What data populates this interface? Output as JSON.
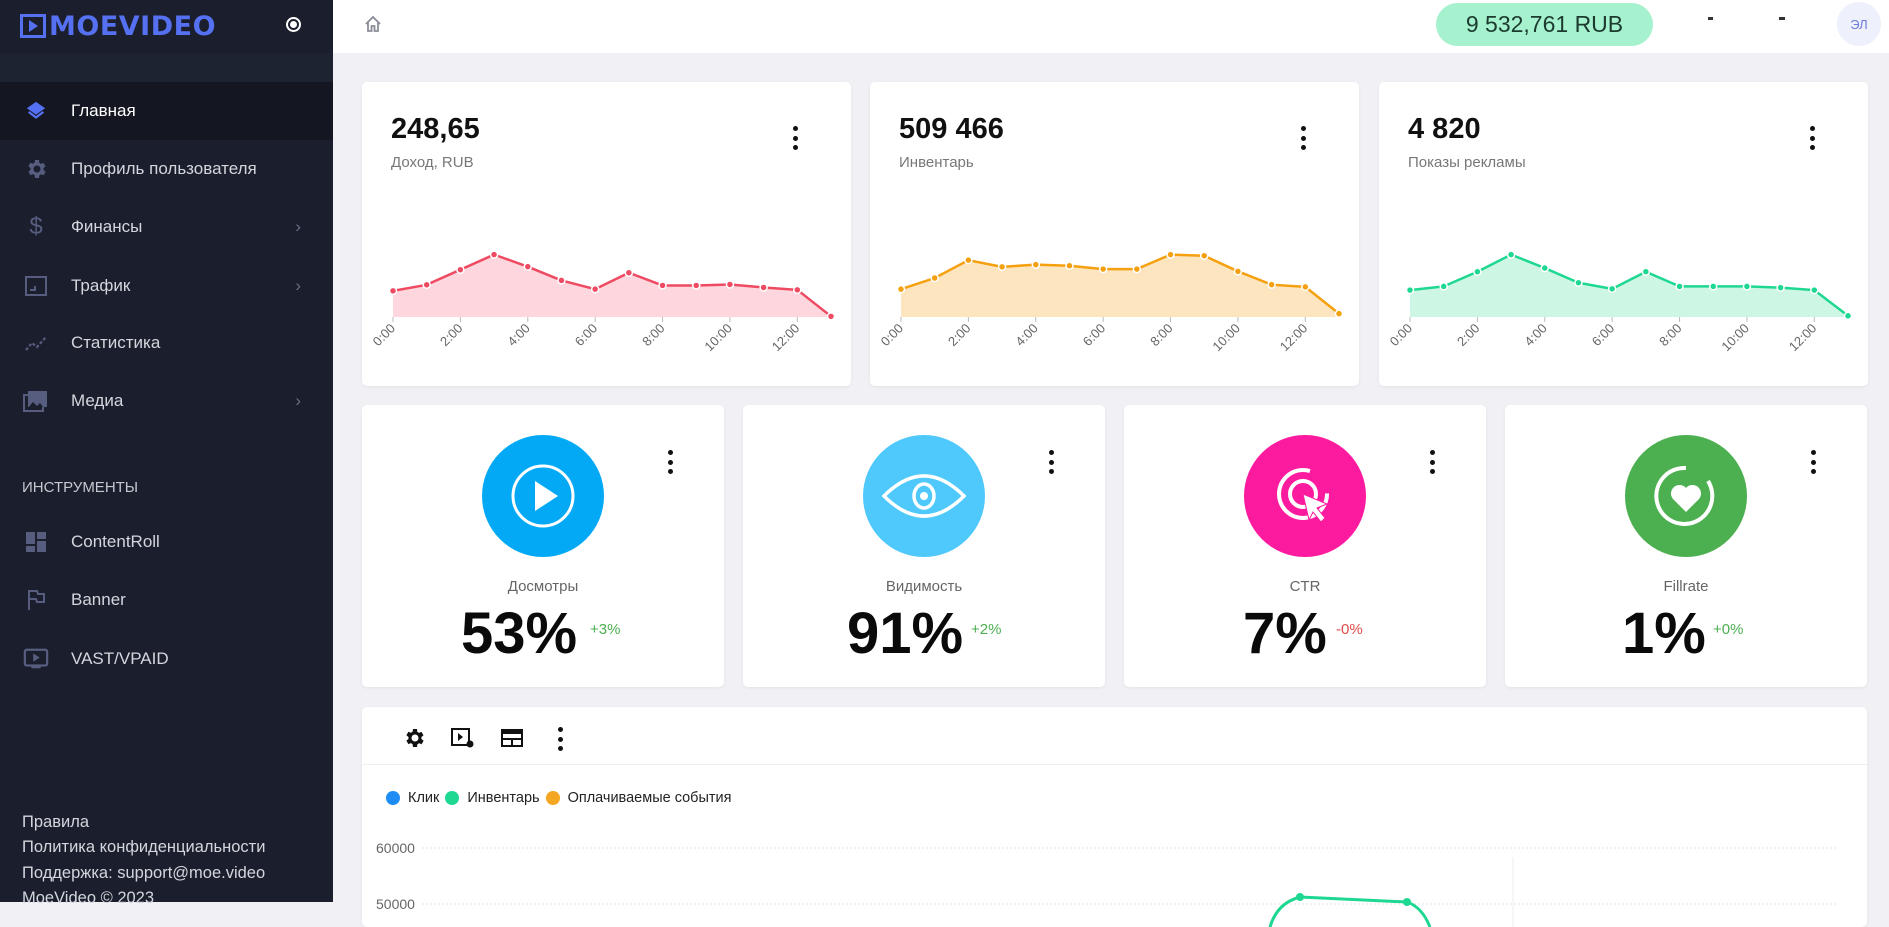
{
  "brand": {
    "name": "MOEVIDEO",
    "accent": "#5570f1"
  },
  "sidebar": {
    "items": [
      {
        "label": "Главная",
        "icon": "layers-icon",
        "active": true
      },
      {
        "label": "Профиль пользователя",
        "icon": "gear-icon"
      },
      {
        "label": "Финансы",
        "icon": "dollar-icon",
        "chevron": true
      },
      {
        "label": "Трафик",
        "icon": "traffic-icon",
        "chevron": true
      },
      {
        "label": "Статистика",
        "icon": "stats-icon"
      },
      {
        "label": "Медиа",
        "icon": "media-icon",
        "chevron": true
      }
    ],
    "section_title": "ИНСТРУМЕНТЫ",
    "tools": [
      {
        "label": "ContentRoll",
        "icon": "grid-icon"
      },
      {
        "label": "Banner",
        "icon": "flag-icon"
      },
      {
        "label": "VAST/VPAID",
        "icon": "tv-play-icon"
      }
    ],
    "footer": [
      "Правила",
      "Политика конфиденциальности",
      "Поддержка: support@moe.video",
      "MoeVideo © 2023"
    ]
  },
  "header": {
    "balance": "9 532,761 RUB",
    "avatar": "ЭЛ"
  },
  "stat_cards": [
    {
      "value": "248,65",
      "label": "Доход, RUB",
      "color": "#ee4a62",
      "fill": "#fdd0d7",
      "values": [
        78,
        96,
        141,
        186,
        150,
        109,
        83,
        132,
        94,
        94,
        97,
        88,
        81,
        2
      ]
    },
    {
      "value": "509 466",
      "label": "Инвентарь",
      "color": "#f5a00f",
      "fill": "#fde0b4",
      "values": [
        25,
        35,
        51,
        45,
        47,
        46,
        43,
        43,
        56,
        55,
        41,
        29,
        27,
        3
      ]
    },
    {
      "value": "4 820",
      "label": "Показы рекламы",
      "color": "#1ed892",
      "fill": "#c5f5e1",
      "values": [
        22,
        25,
        37,
        51,
        40,
        28,
        23,
        37,
        25,
        25,
        25,
        24,
        22,
        1
      ]
    }
  ],
  "x_ticks": [
    "0:00",
    "2:00",
    "4:00",
    "6:00",
    "8:00",
    "10:00",
    "12:00"
  ],
  "kpis": [
    {
      "label": "Досмотры",
      "value": "53%",
      "delta": "+3%",
      "color": "#03a9f4",
      "delta_color": "#4caf50",
      "icon": "play-circle-icon"
    },
    {
      "label": "Видимость",
      "value": "91%",
      "delta": "+2%",
      "color": "#4fc8fb",
      "delta_color": "#4caf50",
      "icon": "eye-icon"
    },
    {
      "label": "CTR",
      "value": "7%",
      "delta": "-0%",
      "color": "#fc1a9e",
      "delta_color": "#e04a4a",
      "icon": "target-click-icon"
    },
    {
      "label": "Fillrate",
      "value": "1%",
      "delta": "+0%",
      "color": "#4caf50",
      "delta_color": "#4caf50",
      "icon": "heart-circle-icon"
    }
  ],
  "chart_data": {
    "type": "line",
    "legend": [
      {
        "name": "Клик",
        "color": "#1e8cf5"
      },
      {
        "name": "Инвентарь",
        "color": "#1ed892"
      },
      {
        "name": "Оплачиваемые события",
        "color": "#f5a623"
      }
    ],
    "y_ticks": [
      "60000",
      "50000"
    ],
    "ylim": [
      50000,
      60000
    ]
  }
}
